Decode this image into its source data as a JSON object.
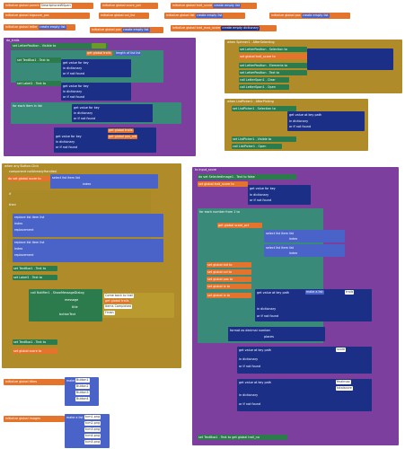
{
  "top_inits": [
    {
      "label": "initialize global",
      "name": "parent",
      "value": "SmartphoneWSpan"
    },
    {
      "label": "initialize global",
      "name": "bigscore_pos",
      "value": ""
    },
    {
      "label": "initialize global",
      "name": "score_pct",
      "value": ""
    },
    {
      "label": "initialize global",
      "name": "trail_score",
      "value": "create empty list"
    },
    {
      "label": "initialize global",
      "name": "letter",
      "value": "create empty list"
    },
    {
      "label": "initialize global",
      "name": "col_list",
      "value": ""
    },
    {
      "label": "initialize global",
      "name": "list",
      "value": "create empty list"
    },
    {
      "label": "initialize global",
      "name": "pos",
      "value": "create empty list"
    },
    {
      "label": "initialize global",
      "name": "trail_max_score",
      "value": "create empty dictionary"
    },
    {
      "label": "initialize global",
      "name": "pos",
      "value": "create empty list"
    }
  ],
  "left_proc": {
    "header": "do_trails",
    "rows": [
      "set LetterPosition . Visible to",
      "get global trails",
      "length of list list",
      "get global trails",
      "set TextBox1 . Text to",
      "get value for key",
      "in dictionary",
      "or if not found",
      "set Label1 . Text to",
      "get value for key",
      "in dictionary",
      "or if not found",
      "for each item in list",
      "get value for key",
      "in dictionary",
      "or if not found",
      "get global trails",
      "get global pos_ord",
      "get value for key",
      "in dictionary",
      "or if not found"
    ]
  },
  "right_event": {
    "header": "when Spinner1 . AfterSelecting",
    "rows": [
      "set LetterPosition . Selection to",
      "set global trail_score to",
      "set LetterPosition . Elements to",
      "set LetterPosition . Text to",
      "call LetterSpan1 . Clear",
      "call LetterSpan1 . Open"
    ]
  },
  "right_event2": {
    "header": "when ListPicker1 . AfterPicking",
    "rows": [
      "set ListPicker1 . Selection to",
      "get value at key path",
      "in dictionary",
      "or if not found",
      "set ListPicker1 . Visible to",
      "call ListPicker1 . Open"
    ]
  },
  "mid_event": {
    "header": "when any Button.Click",
    "rows": [
      "component  notAlreadyHandled",
      "do  set global score to",
      "select list item list",
      "index",
      "if",
      "then",
      "replace list item list",
      "index",
      "replacement",
      "replace list item list",
      "index",
      "replacement",
      "set TextBox1 . Text to",
      "set Label1 . Text to",
      "call Notifier1 . ShowMessageDialog",
      "message",
      "title",
      "buttonText",
      "set TextBox1 . Text to",
      "set global score to"
    ],
    "join_items": [
      "Come back to trail",
      "get global trails",
      "Items Completed",
      "Finish"
    ]
  },
  "right_proc": {
    "header": "to input_score",
    "rows": [
      "do  set SelectedImage1 . Text to  false",
      "set global trail_score to",
      "get value for key",
      "in dictionary",
      "or if not found",
      "for each number from 1 to",
      "get global score_pct",
      "select list item list",
      "index",
      "select list item list",
      "index",
      "set global bid to",
      "set global col to",
      "set global pos to",
      "set global ix to",
      "set global ix to",
      "get value at key path",
      "make a list",
      "in dictionary",
      "or if not found",
      "format as decimal number",
      "places",
      "get value at key path",
      "in dictionary",
      "or if not found",
      "get value at key path",
      "in dictionary",
      "or if not found",
      "set TextBox1 . Text to  get global trail_no"
    ],
    "tags": [
      "trails",
      "score",
      "trails",
      "finalmax",
      "totalscore"
    ]
  },
  "bottom_inits": [
    {
      "label": "initialize global",
      "name": "titles",
      "value": "make a list",
      "items": [
        "Button1",
        "Button2",
        "Button3",
        "Button4"
      ]
    },
    {
      "label": "initialize global",
      "name": "images",
      "value": "make a list",
      "items": [
        "tcm1.png",
        "tcm2.png",
        "tcm3.png",
        "tcm4.png",
        "tcm5.png"
      ]
    }
  ],
  "colors": {
    "init": "#e4742c",
    "procedure": "#7d3f9e",
    "control": "#b08b2a",
    "list": "#4a63c9",
    "dict": "#1b2f87",
    "component": "#2b7b4c",
    "text": "#b89a2e"
  }
}
